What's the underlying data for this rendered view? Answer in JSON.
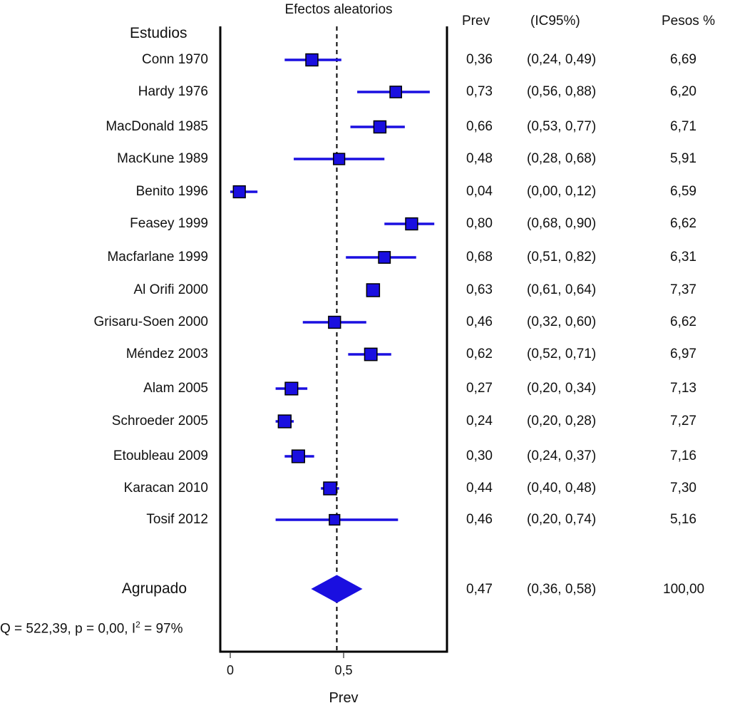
{
  "chart_data": {
    "type": "forest",
    "title": "Efectos aleatorios",
    "xlabel": "Prev",
    "xlim": [
      0,
      0.95
    ],
    "xticks": [
      0,
      0.5
    ],
    "xtick_labels": [
      "0",
      "0,5"
    ],
    "reference_line": 0.47,
    "headers": {
      "studies": "Estudios",
      "prev": "Prev",
      "ci": "(IC95%)",
      "weights": "Pesos %"
    },
    "studies": [
      {
        "name": "Conn 1970",
        "prev": 0.36,
        "lo": 0.24,
        "hi": 0.49,
        "weight": 6.69,
        "prev_label": "0,36",
        "ci_label": "(0,24, 0,49)",
        "weight_label": "6,69"
      },
      {
        "name": "Hardy 1976",
        "prev": 0.73,
        "lo": 0.56,
        "hi": 0.88,
        "weight": 6.2,
        "prev_label": "0,73",
        "ci_label": "(0,56, 0,88)",
        "weight_label": "6,20"
      },
      {
        "name": "MacDonald 1985",
        "prev": 0.66,
        "lo": 0.53,
        "hi": 0.77,
        "weight": 6.71,
        "prev_label": "0,66",
        "ci_label": "(0,53, 0,77)",
        "weight_label": "6,71"
      },
      {
        "name": "MacKune 1989",
        "prev": 0.48,
        "lo": 0.28,
        "hi": 0.68,
        "weight": 5.91,
        "prev_label": "0,48",
        "ci_label": "(0,28, 0,68)",
        "weight_label": "5,91"
      },
      {
        "name": "Benito 1996",
        "prev": 0.04,
        "lo": 0.0,
        "hi": 0.12,
        "weight": 6.59,
        "prev_label": "0,04",
        "ci_label": "(0,00, 0,12)",
        "weight_label": "6,59"
      },
      {
        "name": "Feasey 1999",
        "prev": 0.8,
        "lo": 0.68,
        "hi": 0.9,
        "weight": 6.62,
        "prev_label": "0,80",
        "ci_label": "(0,68, 0,90)",
        "weight_label": "6,62"
      },
      {
        "name": "Macfarlane 1999",
        "prev": 0.68,
        "lo": 0.51,
        "hi": 0.82,
        "weight": 6.31,
        "prev_label": "0,68",
        "ci_label": "(0,51, 0,82)",
        "weight_label": "6,31"
      },
      {
        "name": "Al Orifi 2000",
        "prev": 0.63,
        "lo": 0.61,
        "hi": 0.64,
        "weight": 7.37,
        "prev_label": "0,63",
        "ci_label": "(0,61, 0,64)",
        "weight_label": "7,37"
      },
      {
        "name": "Grisaru-Soen 2000",
        "prev": 0.46,
        "lo": 0.32,
        "hi": 0.6,
        "weight": 6.62,
        "prev_label": "0,46",
        "ci_label": "(0,32, 0,60)",
        "weight_label": "6,62"
      },
      {
        "name": "Méndez 2003",
        "prev": 0.62,
        "lo": 0.52,
        "hi": 0.71,
        "weight": 6.97,
        "prev_label": "0,62",
        "ci_label": "(0,52, 0,71)",
        "weight_label": "6,97"
      },
      {
        "name": "Alam 2005",
        "prev": 0.27,
        "lo": 0.2,
        "hi": 0.34,
        "weight": 7.13,
        "prev_label": "0,27",
        "ci_label": "(0,20, 0,34)",
        "weight_label": "7,13"
      },
      {
        "name": "Schroeder 2005",
        "prev": 0.24,
        "lo": 0.2,
        "hi": 0.28,
        "weight": 7.27,
        "prev_label": "0,24",
        "ci_label": "(0,20, 0,28)",
        "weight_label": "7,27"
      },
      {
        "name": "Etoubleau 2009",
        "prev": 0.3,
        "lo": 0.24,
        "hi": 0.37,
        "weight": 7.16,
        "prev_label": "0,30",
        "ci_label": "(0,24, 0,37)",
        "weight_label": "7,16"
      },
      {
        "name": "Karacan 2010",
        "prev": 0.44,
        "lo": 0.4,
        "hi": 0.48,
        "weight": 7.3,
        "prev_label": "0,44",
        "ci_label": "(0,40, 0,48)",
        "weight_label": "7,30"
      },
      {
        "name": "Tosif 2012",
        "prev": 0.46,
        "lo": 0.2,
        "hi": 0.74,
        "weight": 5.16,
        "prev_label": "0,46",
        "ci_label": "(0,20, 0,74)",
        "weight_label": "5,16"
      }
    ],
    "pooled": {
      "name": "Agrupado",
      "prev": 0.47,
      "lo": 0.36,
      "hi": 0.58,
      "weight": 100.0,
      "prev_label": "0,47",
      "ci_label": "(0,36, 0,58)",
      "weight_label": "100,00"
    },
    "heterogeneity": {
      "prefix": "Q = 522,39, p = 0,00, I",
      "sup": "2",
      "suffix": " = 97%"
    },
    "colors": {
      "marker": "#1a0fe0",
      "line": "#1a0fe0",
      "axis": "#000000"
    }
  }
}
